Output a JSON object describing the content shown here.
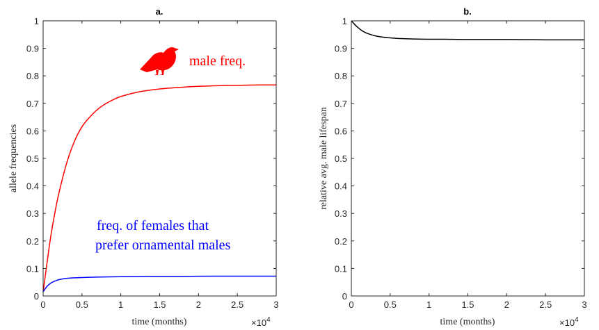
{
  "chart_data": [
    {
      "type": "line",
      "title": "a.",
      "xlabel": "time (months)",
      "ylabel": "allele frequencies",
      "xlim": [
        0,
        30000
      ],
      "ylim": [
        0,
        1
      ],
      "x_exponent_label": "×10",
      "x_exponent_power": "4",
      "xtick_labels": [
        "0",
        "0.5",
        "1",
        "1.5",
        "2",
        "2.5",
        "3"
      ],
      "ytick_labels": [
        "0",
        "0.1",
        "0.2",
        "0.3",
        "0.4",
        "0.5",
        "0.6",
        "0.7",
        "0.8",
        "0.9",
        "1"
      ],
      "grid": false,
      "series": [
        {
          "color": "#ff0000",
          "x": [
            0,
            500,
            1000,
            1500,
            2000,
            3000,
            4000,
            5000,
            6000,
            7000,
            8000,
            9000,
            10000,
            12000,
            14000,
            16000,
            18000,
            20000,
            22000,
            24000,
            26000,
            28000,
            30000
          ],
          "y": [
            0.015,
            0.12,
            0.22,
            0.3,
            0.37,
            0.48,
            0.56,
            0.615,
            0.65,
            0.678,
            0.698,
            0.713,
            0.725,
            0.74,
            0.749,
            0.755,
            0.759,
            0.762,
            0.764,
            0.765,
            0.766,
            0.767,
            0.767
          ]
        },
        {
          "color": "#0000ff",
          "x": [
            0,
            500,
            1000,
            1500,
            2000,
            3000,
            4000,
            5000,
            6000,
            8000,
            10000,
            14000,
            18000,
            22000,
            26000,
            30000
          ],
          "y": [
            0.015,
            0.035,
            0.047,
            0.054,
            0.059,
            0.064,
            0.066,
            0.067,
            0.068,
            0.069,
            0.07,
            0.071,
            0.071,
            0.072,
            0.072,
            0.072
          ]
        }
      ],
      "annotations": [
        {
          "text": "male freq.",
          "color": "#ff0000"
        },
        {
          "text": "freq. of females that",
          "color": "#0000ff"
        },
        {
          "text": "prefer ornamental males",
          "color": "#0000ff"
        }
      ],
      "icon": "bird-icon"
    },
    {
      "type": "line",
      "title": "b.",
      "xlabel": "time (months)",
      "ylabel": "relative avg. male lifespan",
      "xlim": [
        0,
        30000
      ],
      "ylim": [
        0,
        1
      ],
      "x_exponent_label": "×10",
      "x_exponent_power": "4",
      "xtick_labels": [
        "0",
        "0.5",
        "1",
        "1.5",
        "2",
        "2.5",
        "3"
      ],
      "ytick_labels": [
        "0",
        "0.1",
        "0.2",
        "0.3",
        "0.4",
        "0.5",
        "0.6",
        "0.7",
        "0.8",
        "0.9",
        "1"
      ],
      "grid": false,
      "series": [
        {
          "color": "#000000",
          "x": [
            0,
            500,
            1000,
            1500,
            2000,
            3000,
            4000,
            5000,
            6000,
            8000,
            10000,
            12000,
            15000,
            20000,
            25000,
            30000
          ],
          "y": [
            1.0,
            0.985,
            0.972,
            0.962,
            0.955,
            0.946,
            0.941,
            0.938,
            0.936,
            0.934,
            0.933,
            0.933,
            0.932,
            0.932,
            0.931,
            0.931
          ]
        }
      ]
    }
  ]
}
